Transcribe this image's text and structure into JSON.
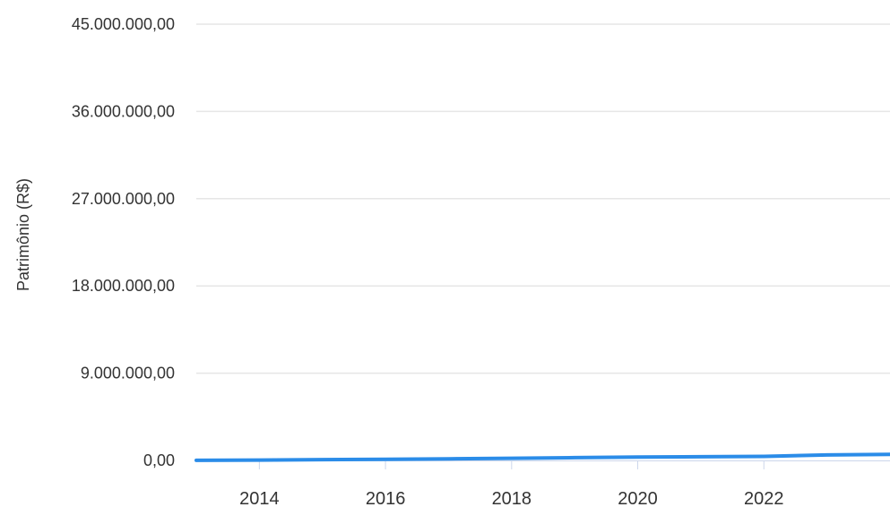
{
  "chart_data": {
    "type": "line",
    "title": "",
    "ylabel": "Patrimônio (R$)",
    "xlabel": "",
    "ylim": [
      0,
      45000000
    ],
    "xlim": [
      2013,
      2024
    ],
    "y_ticks": [
      "0,00",
      "9.000.000,00",
      "18.000.000,00",
      "27.000.000,00",
      "36.000.000,00",
      "45.000.000,00"
    ],
    "y_tick_values": [
      0,
      9000000,
      18000000,
      27000000,
      36000000,
      45000000
    ],
    "x_ticks": [
      "2014",
      "2016",
      "2018",
      "2020",
      "2022"
    ],
    "x_tick_values": [
      2014,
      2016,
      2018,
      2020,
      2022
    ],
    "grid": true,
    "series": [
      {
        "color": "#2b8ce8",
        "x": [
          2013,
          2014,
          2015,
          2016,
          2017,
          2018,
          2019,
          2020,
          2021,
          2022,
          2023,
          2024
        ],
        "values": [
          10000,
          40000,
          80000,
          120000,
          170000,
          220000,
          290000,
          340000,
          380000,
          420000,
          560000,
          620000
        ]
      }
    ]
  }
}
